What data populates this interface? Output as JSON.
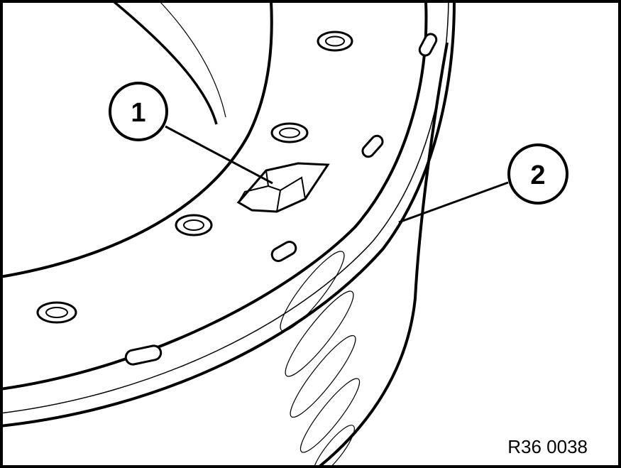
{
  "callouts": [
    {
      "number": "1",
      "label": ""
    },
    {
      "number": "2",
      "label": ""
    }
  ],
  "reference_code": "R36 0038",
  "colors": {
    "line": "#000000",
    "background": "#ffffff",
    "frame": "#000000"
  }
}
